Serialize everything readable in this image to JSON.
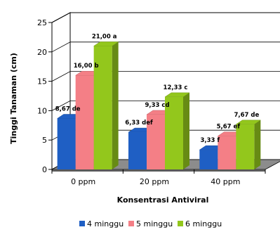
{
  "chart_data": {
    "type": "bar",
    "title": "",
    "xlabel": "Konsentrasi Antiviral",
    "ylabel": "Tinggi Tanaman (cm)",
    "categories": [
      "0 ppm",
      "20 ppm",
      "40 ppm"
    ],
    "ylim": [
      0,
      25
    ],
    "yticks": [
      "0",
      "5",
      "10",
      "15",
      "20",
      "25"
    ],
    "grid": true,
    "legend_position": "bottom",
    "series": [
      {
        "name": "4 minggu",
        "color": "#1f5fc4",
        "values": [
          8.67,
          6.33,
          3.33
        ],
        "labels": [
          "8,67 de",
          "6,33 def",
          "3,33 f"
        ]
      },
      {
        "name": "5 minggu",
        "color": "#f47f86",
        "values": [
          16.0,
          9.33,
          5.67
        ],
        "labels": [
          "16,00 b",
          "9,33 cd",
          "5,67 ef"
        ]
      },
      {
        "name": "6 minggu",
        "color": "#93c71c",
        "values": [
          21.0,
          12.33,
          7.67
        ],
        "labels": [
          "21,00 a",
          "12,33 c",
          "7,67 de"
        ]
      }
    ]
  }
}
